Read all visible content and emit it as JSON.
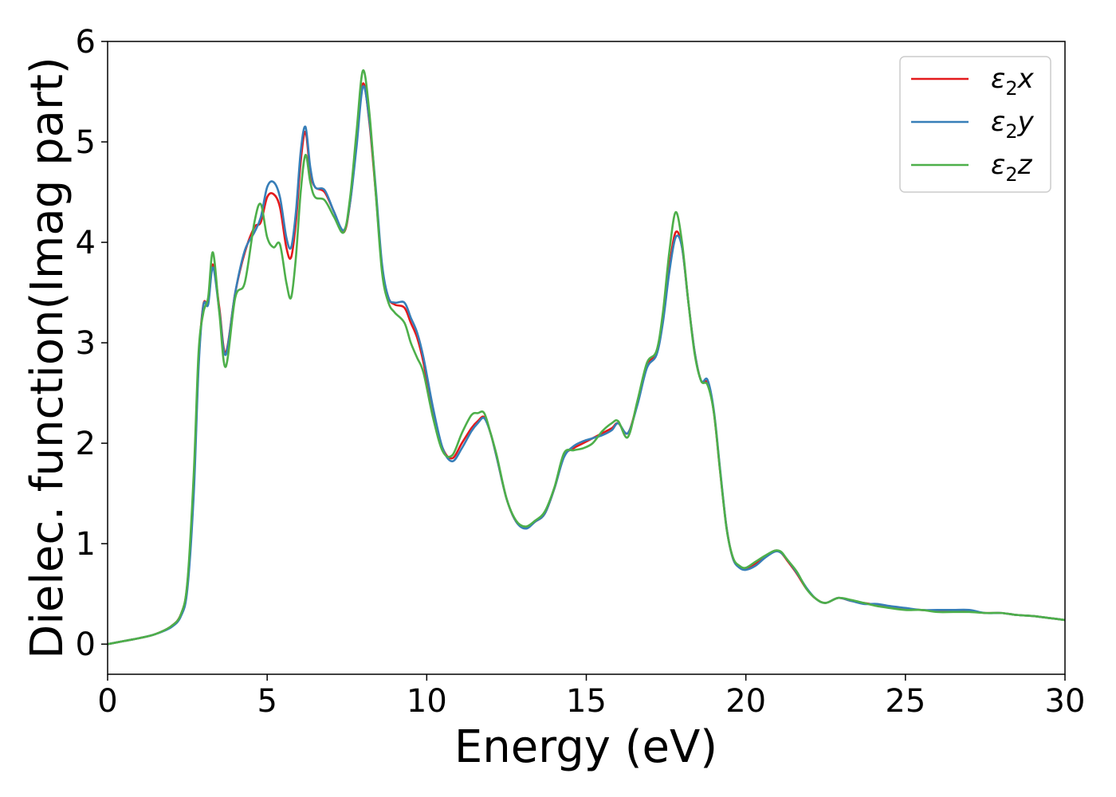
{
  "chart_data": {
    "type": "line",
    "title": "",
    "xlabel": "Energy (eV)",
    "ylabel": "Dielec. function(Imag part)",
    "xlim": [
      0,
      30
    ],
    "ylim": [
      -0.3,
      6
    ],
    "xticks": [
      0,
      5,
      10,
      15,
      20,
      25,
      30
    ],
    "yticks": [
      0,
      1,
      2,
      3,
      4,
      5,
      6
    ],
    "xtick_labels": [
      "0",
      "5",
      "10",
      "15",
      "20",
      "25",
      "30"
    ],
    "ytick_labels": [
      "0",
      "1",
      "2",
      "3",
      "4",
      "5",
      "6"
    ],
    "grid": false,
    "legend_position": "top-right",
    "series": [
      {
        "name": "ε₂x",
        "legend_base": "ε",
        "legend_sub": "2",
        "legend_suffix": "x",
        "color": "#e41a1c",
        "x": [
          0,
          0.5,
          1.0,
          1.5,
          2.0,
          2.3,
          2.5,
          2.7,
          2.85,
          3.0,
          3.15,
          3.3,
          3.5,
          3.7,
          4.0,
          4.3,
          4.6,
          4.8,
          5.0,
          5.2,
          5.4,
          5.6,
          5.75,
          5.9,
          6.05,
          6.2,
          6.35,
          6.5,
          6.8,
          7.1,
          7.4,
          7.6,
          7.8,
          8.0,
          8.2,
          8.4,
          8.6,
          8.8,
          9.0,
          9.3,
          9.5,
          9.7,
          9.9,
          10.2,
          10.5,
          10.8,
          11.1,
          11.4,
          11.6,
          11.8,
          12.0,
          12.2,
          12.5,
          12.8,
          13.1,
          13.4,
          13.7,
          14.0,
          14.3,
          14.6,
          14.9,
          15.2,
          15.5,
          15.8,
          16.0,
          16.3,
          16.6,
          16.9,
          17.2,
          17.4,
          17.6,
          17.8,
          18.0,
          18.2,
          18.4,
          18.6,
          18.8,
          19.0,
          19.2,
          19.4,
          19.6,
          19.8,
          20.0,
          20.3,
          20.6,
          20.9,
          21.1,
          21.3,
          21.6,
          21.9,
          22.2,
          22.5,
          22.9,
          23.3,
          23.7,
          24.1,
          24.5,
          25.0,
          25.5,
          26.0,
          26.5,
          27.0,
          27.5,
          28.0,
          28.5,
          29.0,
          29.5,
          30.0
        ],
        "y": [
          0.0,
          0.03,
          0.06,
          0.1,
          0.18,
          0.3,
          0.6,
          1.6,
          2.8,
          3.38,
          3.4,
          3.78,
          3.35,
          2.9,
          3.5,
          3.9,
          4.15,
          4.2,
          4.45,
          4.48,
          4.35,
          3.95,
          3.85,
          4.2,
          4.8,
          5.1,
          4.7,
          4.55,
          4.5,
          4.3,
          4.1,
          4.4,
          5.0,
          5.58,
          5.2,
          4.5,
          3.75,
          3.45,
          3.38,
          3.35,
          3.2,
          3.05,
          2.8,
          2.3,
          1.95,
          1.85,
          2.0,
          2.15,
          2.22,
          2.26,
          2.1,
          1.85,
          1.45,
          1.22,
          1.16,
          1.22,
          1.3,
          1.55,
          1.87,
          1.95,
          2.0,
          2.05,
          2.1,
          2.15,
          2.2,
          2.1,
          2.4,
          2.78,
          2.9,
          3.25,
          3.75,
          4.1,
          3.95,
          3.4,
          2.9,
          2.62,
          2.6,
          2.3,
          1.7,
          1.15,
          0.85,
          0.77,
          0.75,
          0.8,
          0.87,
          0.93,
          0.91,
          0.83,
          0.7,
          0.55,
          0.45,
          0.41,
          0.46,
          0.43,
          0.41,
          0.39,
          0.37,
          0.35,
          0.34,
          0.33,
          0.33,
          0.33,
          0.31,
          0.31,
          0.29,
          0.28,
          0.26,
          0.24
        ]
      },
      {
        "name": "ε₂y",
        "legend_base": "ε",
        "legend_sub": "2",
        "legend_suffix": "y",
        "color": "#377eb8",
        "x": [
          0,
          0.5,
          1.0,
          1.5,
          2.0,
          2.3,
          2.5,
          2.7,
          2.85,
          3.0,
          3.15,
          3.3,
          3.5,
          3.7,
          4.0,
          4.3,
          4.6,
          4.8,
          5.0,
          5.2,
          5.4,
          5.6,
          5.75,
          5.9,
          6.05,
          6.2,
          6.35,
          6.5,
          6.8,
          7.1,
          7.4,
          7.6,
          7.8,
          8.0,
          8.2,
          8.4,
          8.6,
          8.8,
          9.0,
          9.3,
          9.5,
          9.7,
          9.9,
          10.2,
          10.5,
          10.8,
          11.1,
          11.4,
          11.6,
          11.8,
          12.0,
          12.2,
          12.5,
          12.8,
          13.1,
          13.4,
          13.7,
          14.0,
          14.3,
          14.6,
          14.9,
          15.2,
          15.5,
          15.8,
          16.0,
          16.3,
          16.6,
          16.9,
          17.2,
          17.4,
          17.6,
          17.8,
          18.0,
          18.2,
          18.4,
          18.6,
          18.8,
          19.0,
          19.2,
          19.4,
          19.6,
          19.8,
          20.0,
          20.3,
          20.6,
          20.9,
          21.1,
          21.3,
          21.6,
          21.9,
          22.2,
          22.5,
          22.9,
          23.3,
          23.7,
          24.1,
          24.5,
          25.0,
          25.5,
          26.0,
          26.5,
          27.0,
          27.5,
          28.0,
          28.5,
          29.0,
          29.5,
          30.0
        ],
        "y": [
          0.0,
          0.03,
          0.06,
          0.1,
          0.17,
          0.28,
          0.55,
          1.5,
          2.75,
          3.37,
          3.38,
          3.75,
          3.32,
          2.88,
          3.5,
          3.92,
          4.1,
          4.25,
          4.55,
          4.6,
          4.45,
          4.05,
          3.95,
          4.3,
          4.9,
          5.15,
          4.75,
          4.55,
          4.52,
          4.3,
          4.12,
          4.4,
          4.95,
          5.55,
          5.22,
          4.55,
          3.78,
          3.45,
          3.4,
          3.4,
          3.25,
          3.1,
          2.85,
          2.35,
          1.95,
          1.82,
          1.95,
          2.12,
          2.2,
          2.25,
          2.1,
          1.85,
          1.45,
          1.22,
          1.15,
          1.22,
          1.3,
          1.55,
          1.86,
          1.97,
          2.02,
          2.05,
          2.08,
          2.13,
          2.2,
          2.1,
          2.38,
          2.75,
          2.88,
          3.2,
          3.7,
          4.05,
          3.95,
          3.4,
          2.9,
          2.62,
          2.63,
          2.32,
          1.72,
          1.15,
          0.85,
          0.76,
          0.74,
          0.78,
          0.86,
          0.92,
          0.91,
          0.84,
          0.71,
          0.56,
          0.45,
          0.41,
          0.46,
          0.43,
          0.4,
          0.4,
          0.38,
          0.36,
          0.34,
          0.34,
          0.34,
          0.34,
          0.31,
          0.31,
          0.29,
          0.28,
          0.26,
          0.24
        ]
      },
      {
        "name": "ε₂z",
        "legend_base": "ε",
        "legend_sub": "2",
        "legend_suffix": "z",
        "color": "#4daf4a",
        "x": [
          0,
          0.5,
          1.0,
          1.5,
          2.0,
          2.3,
          2.5,
          2.7,
          2.85,
          3.0,
          3.15,
          3.3,
          3.5,
          3.7,
          4.0,
          4.3,
          4.6,
          4.8,
          5.0,
          5.2,
          5.4,
          5.6,
          5.75,
          5.9,
          6.05,
          6.2,
          6.35,
          6.5,
          6.8,
          7.1,
          7.4,
          7.6,
          7.8,
          8.0,
          8.2,
          8.4,
          8.6,
          8.8,
          9.0,
          9.3,
          9.5,
          9.7,
          9.9,
          10.2,
          10.5,
          10.8,
          11.1,
          11.4,
          11.6,
          11.8,
          12.0,
          12.2,
          12.5,
          12.8,
          13.1,
          13.4,
          13.7,
          14.0,
          14.3,
          14.6,
          14.9,
          15.2,
          15.5,
          15.8,
          16.0,
          16.3,
          16.6,
          16.9,
          17.2,
          17.4,
          17.6,
          17.8,
          18.0,
          18.2,
          18.4,
          18.6,
          18.8,
          19.0,
          19.2,
          19.4,
          19.6,
          19.8,
          20.0,
          20.3,
          20.6,
          20.9,
          21.1,
          21.3,
          21.6,
          21.9,
          22.2,
          22.5,
          22.9,
          23.3,
          23.7,
          24.1,
          24.5,
          25.0,
          25.5,
          26.0,
          26.5,
          27.0,
          27.5,
          28.0,
          28.5,
          29.0,
          29.5,
          30.0
        ],
        "y": [
          0.0,
          0.03,
          0.06,
          0.1,
          0.18,
          0.3,
          0.62,
          1.7,
          2.9,
          3.3,
          3.45,
          3.9,
          3.3,
          2.76,
          3.45,
          3.6,
          4.2,
          4.38,
          4.05,
          3.95,
          3.98,
          3.6,
          3.45,
          3.85,
          4.5,
          4.87,
          4.6,
          4.45,
          4.42,
          4.25,
          4.1,
          4.45,
          5.1,
          5.71,
          5.3,
          4.5,
          3.7,
          3.4,
          3.3,
          3.2,
          3.0,
          2.85,
          2.7,
          2.25,
          1.92,
          1.88,
          2.1,
          2.28,
          2.3,
          2.3,
          2.1,
          1.87,
          1.45,
          1.23,
          1.17,
          1.23,
          1.32,
          1.56,
          1.9,
          1.93,
          1.95,
          2.0,
          2.12,
          2.2,
          2.22,
          2.06,
          2.42,
          2.8,
          2.92,
          3.3,
          3.9,
          4.3,
          4.0,
          3.4,
          2.88,
          2.62,
          2.58,
          2.3,
          1.7,
          1.14,
          0.86,
          0.78,
          0.76,
          0.82,
          0.88,
          0.93,
          0.92,
          0.84,
          0.72,
          0.55,
          0.45,
          0.41,
          0.46,
          0.44,
          0.41,
          0.38,
          0.36,
          0.34,
          0.34,
          0.32,
          0.32,
          0.32,
          0.31,
          0.31,
          0.29,
          0.28,
          0.26,
          0.24
        ]
      }
    ]
  }
}
